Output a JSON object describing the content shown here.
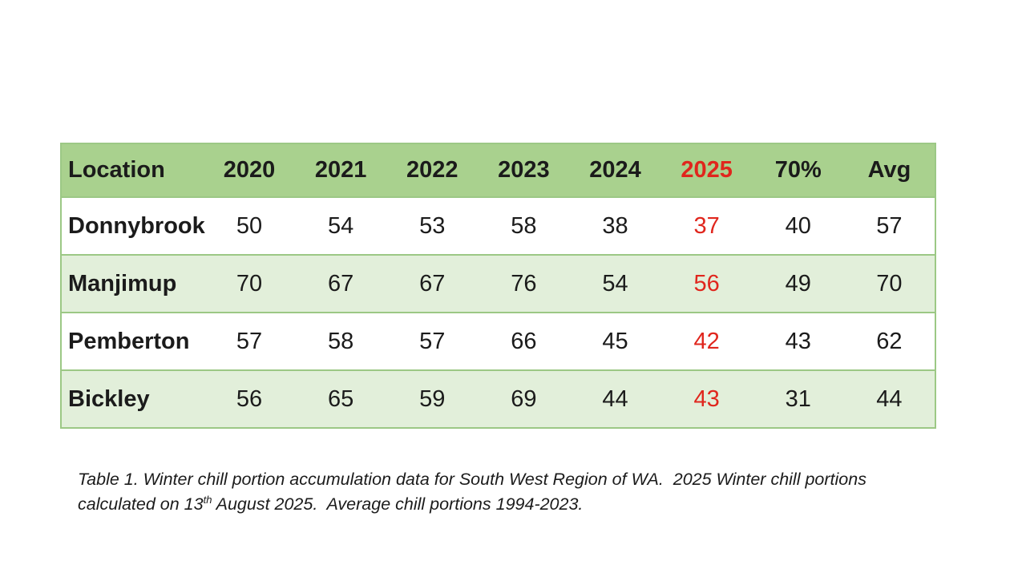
{
  "table": {
    "columns": [
      "Location",
      "2020",
      "2021",
      "2022",
      "2023",
      "2024",
      "2025",
      "70%",
      "Avg"
    ],
    "highlight_column_index": 6,
    "rows": [
      {
        "location": "Donnybrook",
        "values": [
          "50",
          "54",
          "53",
          "58",
          "38",
          "37",
          "40",
          "57"
        ]
      },
      {
        "location": "Manjimup",
        "values": [
          "70",
          "67",
          "67",
          "76",
          "54",
          "56",
          "49",
          "70"
        ]
      },
      {
        "location": "Pemberton",
        "values": [
          "57",
          "58",
          "57",
          "66",
          "45",
          "42",
          "43",
          "62"
        ]
      },
      {
        "location": "Bickley",
        "values": [
          "56",
          "65",
          "59",
          "69",
          "44",
          "43",
          "31",
          "44"
        ]
      }
    ],
    "highlight_value_index": 5,
    "colors": {
      "header_bg": "#a9d18e",
      "alt_row_bg": "#e2efda",
      "row_bg": "#ffffff",
      "border": "#9cc885",
      "highlight_text": "#e0261d",
      "text": "#1b1b1b"
    }
  },
  "caption": {
    "line1": "Table 1. Winter chill portion accumulation data for South West Region of WA.  2025 Winter chill ",
    "line2_before_sup": "portions calculated on 13",
    "line2_sup": "th",
    "line2_after_sup": " August 2025.  Average chill portions 1994-2023."
  }
}
